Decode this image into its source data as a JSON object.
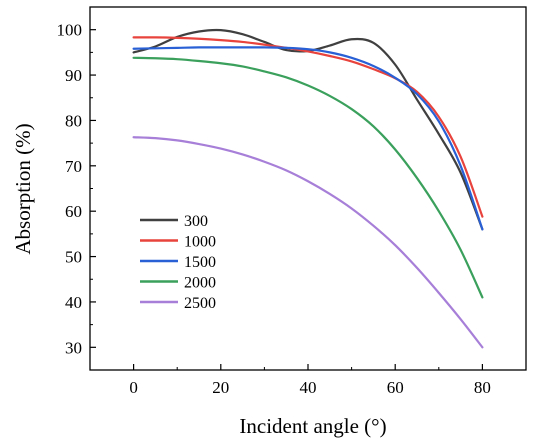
{
  "chart_data": {
    "type": "line",
    "xlabel": "Incident angle (°)",
    "ylabel": "Absorption (%)",
    "xlim": [
      -10,
      90
    ],
    "ylim": [
      25,
      105
    ],
    "xticks": [
      0,
      20,
      40,
      60,
      80
    ],
    "yticks": [
      30,
      40,
      50,
      60,
      70,
      80,
      90,
      100
    ],
    "grid": false,
    "legend_position": "lower-left",
    "series": [
      {
        "name": "300",
        "color": "#404040",
        "x": [
          0,
          5,
          10,
          15,
          20,
          25,
          30,
          35,
          40,
          45,
          50,
          55,
          60,
          65,
          70,
          75,
          80
        ],
        "y": [
          95.0,
          96.3,
          98.4,
          99.6,
          99.9,
          99.0,
          97.3,
          95.5,
          95.3,
          96.5,
          97.9,
          97.1,
          92.3,
          84.6,
          77.0,
          68.5,
          56.0
        ]
      },
      {
        "name": "1000",
        "color": "#e8433c",
        "x": [
          0,
          5,
          10,
          15,
          20,
          25,
          30,
          35,
          40,
          45,
          50,
          55,
          60,
          65,
          70,
          75,
          80
        ],
        "y": [
          98.3,
          98.3,
          98.2,
          98.0,
          97.7,
          97.3,
          96.7,
          96.0,
          95.2,
          94.2,
          93.0,
          91.3,
          89.3,
          86.3,
          80.8,
          72.0,
          58.8
        ]
      },
      {
        "name": "1500",
        "color": "#2960d6",
        "x": [
          0,
          5,
          10,
          15,
          20,
          25,
          30,
          35,
          40,
          45,
          50,
          55,
          60,
          65,
          70,
          75,
          80
        ],
        "y": [
          95.8,
          95.9,
          96.0,
          96.1,
          96.1,
          96.1,
          96.1,
          96.0,
          95.7,
          95.0,
          93.8,
          92.0,
          89.4,
          85.8,
          79.8,
          70.0,
          56.0
        ]
      },
      {
        "name": "2000",
        "color": "#3aa05c",
        "x": [
          0,
          5,
          10,
          15,
          20,
          25,
          30,
          35,
          40,
          45,
          50,
          55,
          60,
          65,
          70,
          75,
          80
        ],
        "y": [
          93.8,
          93.7,
          93.5,
          93.1,
          92.6,
          91.9,
          90.8,
          89.5,
          87.7,
          85.4,
          82.5,
          78.7,
          73.6,
          67.3,
          60.0,
          51.5,
          41.0
        ]
      },
      {
        "name": "2500",
        "color": "#a77fd8",
        "x": [
          0,
          5,
          10,
          15,
          20,
          25,
          30,
          35,
          40,
          45,
          50,
          55,
          60,
          65,
          70,
          75,
          80
        ],
        "y": [
          76.3,
          76.1,
          75.6,
          74.8,
          73.8,
          72.5,
          70.9,
          69.0,
          66.6,
          63.8,
          60.6,
          56.8,
          52.5,
          47.5,
          42.0,
          36.2,
          30.0
        ]
      }
    ]
  }
}
